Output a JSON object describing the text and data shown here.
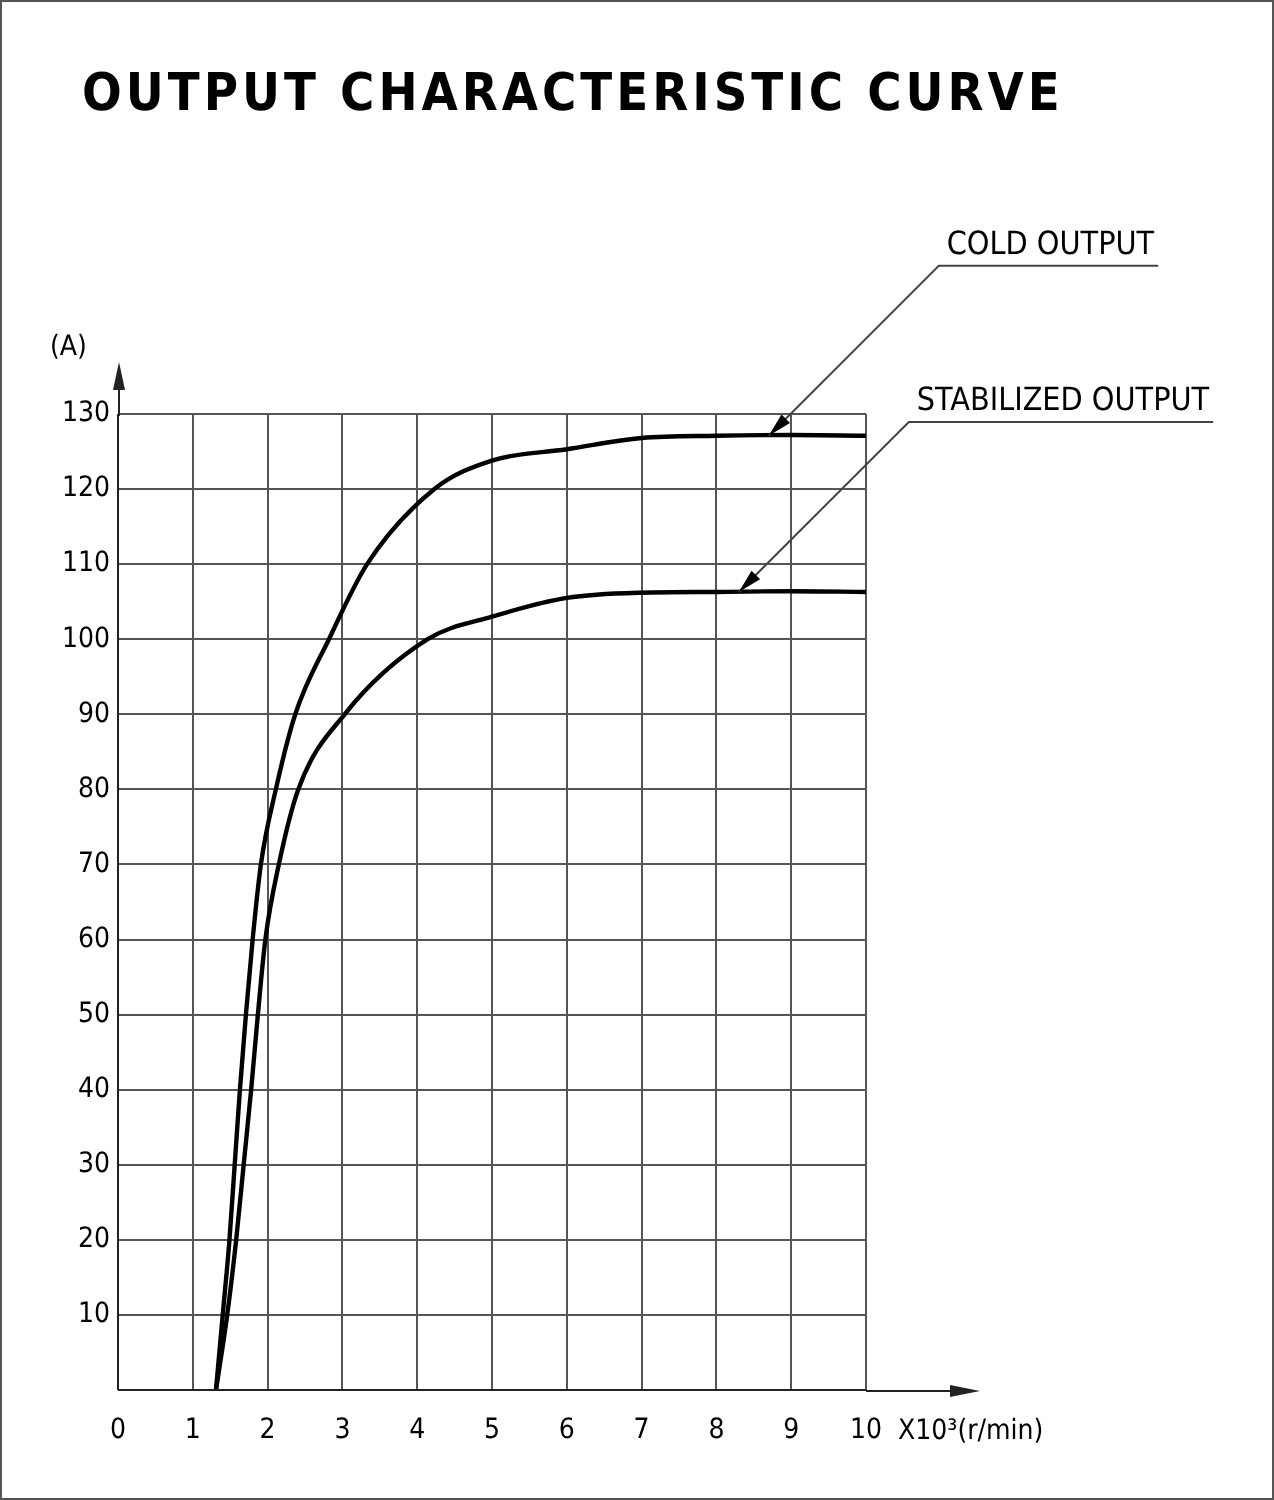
{
  "chart_data": {
    "type": "line",
    "title": "OUTPUT CHARACTERISTIC CURVE",
    "xlabel": "X10³(r/min)",
    "ylabel": "(A)",
    "xlim": [
      0,
      10
    ],
    "ylim": [
      0,
      130
    ],
    "xticks": [
      0,
      1,
      2,
      3,
      4,
      5,
      6,
      7,
      8,
      9,
      10
    ],
    "yticks": [
      {
        "value": 0,
        "label": null
      },
      10,
      20,
      30,
      40,
      50,
      60,
      70,
      80,
      90,
      100,
      110,
      120,
      130
    ],
    "grid": true,
    "legend": false,
    "marker": "none",
    "line_style": "solid",
    "series": [
      {
        "color": "#000000",
        "x": [
          1.31,
          1.4,
          1.49,
          1.56,
          1.63,
          1.71,
          1.8,
          1.91,
          2.11,
          2.37,
          2.82,
          3.33,
          4.23,
          5,
          6,
          7,
          8,
          9,
          10
        ],
        "values": [
          0,
          10,
          20,
          30,
          40,
          50,
          60,
          70,
          80,
          90,
          100,
          110,
          120,
          123.8,
          125.3,
          126.8,
          127.1,
          127.2,
          127.1
        ]
      },
      {
        "color": "#000000",
        "x": [
          1.31,
          1.46,
          1.58,
          1.68,
          1.78,
          1.87,
          1.97,
          2.15,
          2.41,
          3.03,
          4.14,
          5,
          6,
          7,
          8,
          9,
          10
        ],
        "values": [
          0,
          10,
          20,
          30,
          40,
          50,
          60,
          70,
          80,
          90,
          100,
          103,
          105.5,
          106.2,
          106.3,
          106.4,
          106.3
        ]
      }
    ],
    "annotations": [
      {
        "text": "COLD OUTPUT",
        "x": 8.7,
        "y": 127.1
      },
      {
        "text": "STABILIZED OUTPUT",
        "x": 8.3,
        "y": 106.3
      }
    ]
  }
}
